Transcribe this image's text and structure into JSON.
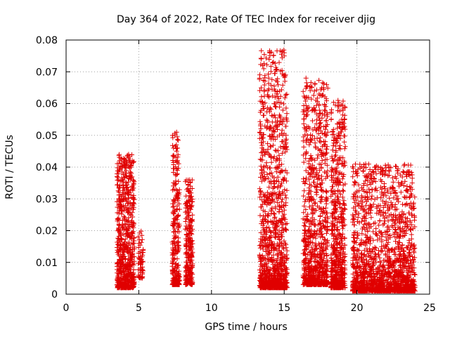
{
  "chart_data": {
    "type": "scatter",
    "title": "Day 364 of 2022, Rate Of TEC Index for receiver djig",
    "xlabel": "GPS time / hours",
    "ylabel": "ROTI / TECUs",
    "xlim": [
      0,
      25
    ],
    "ylim": [
      0,
      0.08
    ],
    "x_ticks": [
      0,
      5,
      10,
      15,
      20,
      25
    ],
    "x_tick_labels": [
      "0",
      "5",
      "10",
      "15",
      "20",
      "25"
    ],
    "y_ticks": [
      0,
      0.01,
      0.02,
      0.03,
      0.04,
      0.05,
      0.06,
      0.07,
      0.08
    ],
    "y_tick_labels": [
      "0",
      "0.01",
      "0.02",
      "0.03",
      "0.04",
      "0.05",
      "0.06",
      "0.07",
      "0.08"
    ],
    "grid": true,
    "marker": "+",
    "marker_color": "#e00000",
    "series": [
      {
        "name": "ROTI",
        "clusters": [
          {
            "x_start": 3.5,
            "x_end": 4.7,
            "y_min": 0.002,
            "y_max": 0.044,
            "count": 700,
            "skew": 2.0
          },
          {
            "x_start": 4.95,
            "x_end": 5.3,
            "y_min": 0.005,
            "y_max": 0.02,
            "count": 60,
            "skew": 1.5
          },
          {
            "x_start": 7.3,
            "x_end": 7.8,
            "y_min": 0.003,
            "y_max": 0.051,
            "count": 300,
            "skew": 2.4
          },
          {
            "x_start": 8.2,
            "x_end": 8.7,
            "y_min": 0.003,
            "y_max": 0.036,
            "count": 280,
            "skew": 2.0
          },
          {
            "x_start": 13.3,
            "x_end": 15.2,
            "y_min": 0.002,
            "y_max": 0.077,
            "count": 1100,
            "skew": 2.6
          },
          {
            "x_start": 16.3,
            "x_end": 18.0,
            "y_min": 0.003,
            "y_max": 0.068,
            "count": 900,
            "skew": 2.4
          },
          {
            "x_start": 18.2,
            "x_end": 19.2,
            "y_min": 0.002,
            "y_max": 0.061,
            "count": 600,
            "skew": 2.4
          },
          {
            "x_start": 19.7,
            "x_end": 24.0,
            "y_min": 0.001,
            "y_max": 0.041,
            "count": 1700,
            "skew": 2.8
          }
        ],
        "points": [
          [
            15.0,
            0.076
          ],
          [
            15.0,
            0.075
          ],
          [
            15.0,
            0.069
          ],
          [
            15.05,
            0.067
          ],
          [
            14.95,
            0.055
          ],
          [
            16.5,
            0.068
          ],
          [
            16.5,
            0.062
          ],
          [
            17.4,
            0.063
          ],
          [
            16.5,
            0.056
          ],
          [
            18.7,
            0.061
          ],
          [
            18.75,
            0.059
          ],
          [
            17.5,
            0.057
          ],
          [
            17.5,
            0.054
          ],
          [
            17.45,
            0.053
          ],
          [
            19.0,
            0.052
          ],
          [
            7.6,
            0.051
          ],
          [
            16.6,
            0.05
          ],
          [
            14.9,
            0.05
          ],
          [
            7.65,
            0.046
          ],
          [
            7.6,
            0.045
          ],
          [
            7.55,
            0.042
          ],
          [
            7.65,
            0.039
          ],
          [
            4.3,
            0.044
          ],
          [
            4.4,
            0.042
          ],
          [
            4.2,
            0.041
          ],
          [
            20.6,
            0.041
          ],
          [
            20.5,
            0.04
          ],
          [
            3.6,
            0.036
          ],
          [
            8.5,
            0.036
          ],
          [
            8.55,
            0.034
          ],
          [
            22.9,
            0.034
          ],
          [
            23.8,
            0.035
          ],
          [
            23.8,
            0.033
          ],
          [
            22.0,
            0.031
          ],
          [
            21.9,
            0.032
          ]
        ]
      }
    ]
  }
}
